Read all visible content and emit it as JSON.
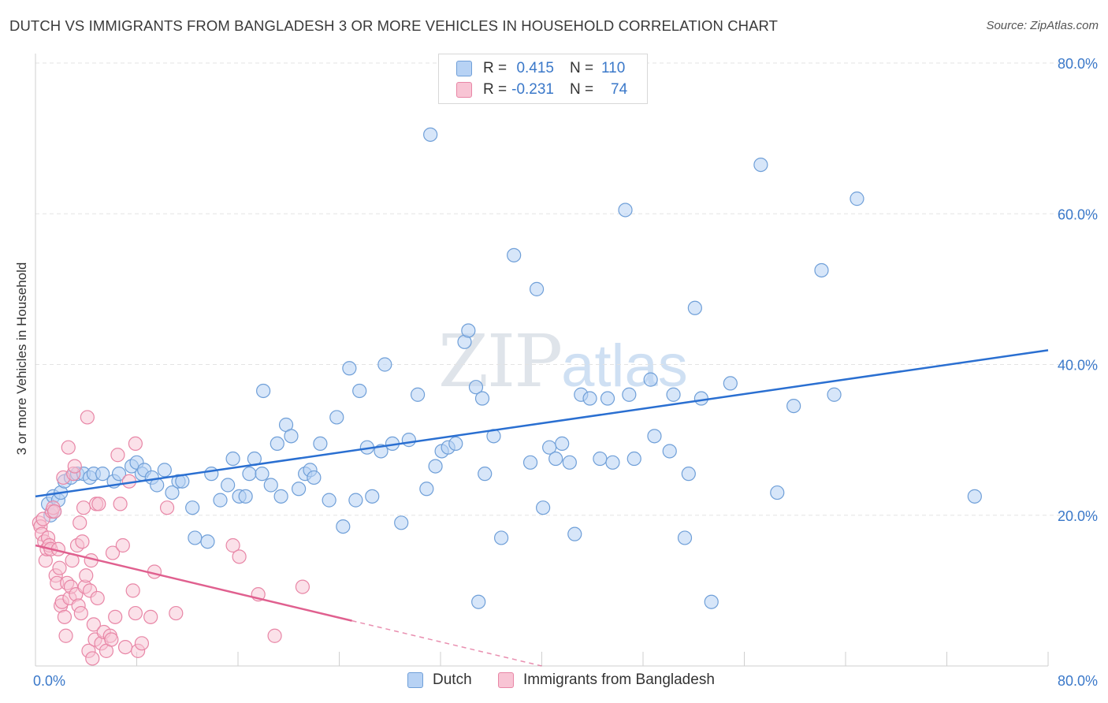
{
  "title": "DUTCH VS IMMIGRANTS FROM BANGLADESH 3 OR MORE VEHICLES IN HOUSEHOLD CORRELATION CHART",
  "source": "Source: ZipAtlas.com",
  "watermark": {
    "zip": "ZIP",
    "atlas": "atlas"
  },
  "legend_top": [
    {
      "r_label": "R =",
      "r_value": "0.415",
      "n_label": "N =",
      "n_value": "110"
    },
    {
      "r_label": "R =",
      "r_value": "-0.231",
      "n_label": "N =",
      "n_value": "74"
    }
  ],
  "colors": {
    "blue_fill": "#b7d2f4",
    "blue_stroke": "#6f9fd8",
    "blue_line": "#2a6fd1",
    "pink_fill": "#f8c4d4",
    "pink_stroke": "#e886a6",
    "pink_line": "#e0608f",
    "grid": "#e3e3e3",
    "axis_text": "#3a78c9"
  },
  "chart_data": {
    "type": "scatter",
    "xlabel": "",
    "ylabel": "3 or more Vehicles in Household",
    "xlim": [
      0,
      80
    ],
    "ylim": [
      0,
      80
    ],
    "x_tick_labels": [
      "0.0%",
      "80.0%"
    ],
    "y_ticks": [
      20,
      40,
      60,
      80
    ],
    "y_tick_labels": [
      "20.0%",
      "40.0%",
      "60.0%",
      "80.0%"
    ],
    "legend_position": "top-center",
    "series": [
      {
        "name": "Dutch",
        "trend": {
          "x": [
            0,
            80
          ],
          "y": [
            22.5,
            41.9
          ]
        },
        "points": [
          [
            1.0,
            21.5
          ],
          [
            1.2,
            20.0
          ],
          [
            1.4,
            22.5
          ],
          [
            1.5,
            20.5
          ],
          [
            1.8,
            22.0
          ],
          [
            2.0,
            23.0
          ],
          [
            2.3,
            24.5
          ],
          [
            2.8,
            25.0
          ],
          [
            3.3,
            25.5
          ],
          [
            3.8,
            25.5
          ],
          [
            4.3,
            25.0
          ],
          [
            4.6,
            25.5
          ],
          [
            5.3,
            25.5
          ],
          [
            6.2,
            24.5
          ],
          [
            6.6,
            25.5
          ],
          [
            7.6,
            26.5
          ],
          [
            8.0,
            27.0
          ],
          [
            8.4,
            25.5
          ],
          [
            8.6,
            26.0
          ],
          [
            9.2,
            25.0
          ],
          [
            9.6,
            24.0
          ],
          [
            10.2,
            26.0
          ],
          [
            10.8,
            23.0
          ],
          [
            11.3,
            24.5
          ],
          [
            11.6,
            24.5
          ],
          [
            12.4,
            21.0
          ],
          [
            12.6,
            17.0
          ],
          [
            13.6,
            16.5
          ],
          [
            13.9,
            25.5
          ],
          [
            14.6,
            22.0
          ],
          [
            15.2,
            24.0
          ],
          [
            15.6,
            27.5
          ],
          [
            16.1,
            22.5
          ],
          [
            16.6,
            22.5
          ],
          [
            16.9,
            25.5
          ],
          [
            17.3,
            27.5
          ],
          [
            17.9,
            25.5
          ],
          [
            18.0,
            36.5
          ],
          [
            18.6,
            24.0
          ],
          [
            19.1,
            29.5
          ],
          [
            19.4,
            22.5
          ],
          [
            19.8,
            32.0
          ],
          [
            20.2,
            30.5
          ],
          [
            20.8,
            23.5
          ],
          [
            21.3,
            25.5
          ],
          [
            21.7,
            26.0
          ],
          [
            22.0,
            25.0
          ],
          [
            22.5,
            29.5
          ],
          [
            23.2,
            22.0
          ],
          [
            23.8,
            33.0
          ],
          [
            24.3,
            18.5
          ],
          [
            24.8,
            39.5
          ],
          [
            25.3,
            22.0
          ],
          [
            25.6,
            36.5
          ],
          [
            26.2,
            29.0
          ],
          [
            26.6,
            22.5
          ],
          [
            27.3,
            28.5
          ],
          [
            27.6,
            40.0
          ],
          [
            28.2,
            29.5
          ],
          [
            28.9,
            19.0
          ],
          [
            29.5,
            30.0
          ],
          [
            30.2,
            36.0
          ],
          [
            30.9,
            23.5
          ],
          [
            31.2,
            70.5
          ],
          [
            31.6,
            26.5
          ],
          [
            32.1,
            28.5
          ],
          [
            32.6,
            29.0
          ],
          [
            33.2,
            29.5
          ],
          [
            33.9,
            43.0
          ],
          [
            34.2,
            44.5
          ],
          [
            34.8,
            37.0
          ],
          [
            35.0,
            8.5
          ],
          [
            35.3,
            35.5
          ],
          [
            35.5,
            25.5
          ],
          [
            36.2,
            30.5
          ],
          [
            36.8,
            17.0
          ],
          [
            37.8,
            54.5
          ],
          [
            39.1,
            27.0
          ],
          [
            39.6,
            50.0
          ],
          [
            40.1,
            21.0
          ],
          [
            40.6,
            29.0
          ],
          [
            41.1,
            27.5
          ],
          [
            41.6,
            29.5
          ],
          [
            42.2,
            27.0
          ],
          [
            42.6,
            17.5
          ],
          [
            43.1,
            36.0
          ],
          [
            43.8,
            35.5
          ],
          [
            44.6,
            27.5
          ],
          [
            45.2,
            35.5
          ],
          [
            45.6,
            27.0
          ],
          [
            46.6,
            60.5
          ],
          [
            46.9,
            36.0
          ],
          [
            47.3,
            27.5
          ],
          [
            48.6,
            38.0
          ],
          [
            48.9,
            30.5
          ],
          [
            50.1,
            28.5
          ],
          [
            50.4,
            36.0
          ],
          [
            51.3,
            17.0
          ],
          [
            51.6,
            25.5
          ],
          [
            52.1,
            47.5
          ],
          [
            52.6,
            35.5
          ],
          [
            53.4,
            8.5
          ],
          [
            54.9,
            37.5
          ],
          [
            57.3,
            66.5
          ],
          [
            58.6,
            23.0
          ],
          [
            59.9,
            34.5
          ],
          [
            62.1,
            52.5
          ],
          [
            63.1,
            36.0
          ],
          [
            64.9,
            62.0
          ],
          [
            74.2,
            22.5
          ]
        ]
      },
      {
        "name": "Immigrants from Bangladesh",
        "trend": {
          "x": [
            0,
            25
          ],
          "y": [
            16.0,
            6.0
          ]
        },
        "trend_dashed": {
          "x": [
            25,
            40
          ],
          "y": [
            6.0,
            0.0
          ]
        },
        "points": [
          [
            0.3,
            19.0
          ],
          [
            0.4,
            18.5
          ],
          [
            0.5,
            17.5
          ],
          [
            0.6,
            19.5
          ],
          [
            0.7,
            16.5
          ],
          [
            0.8,
            14.0
          ],
          [
            0.9,
            15.5
          ],
          [
            1.0,
            17.0
          ],
          [
            1.1,
            16.0
          ],
          [
            1.2,
            15.5
          ],
          [
            1.3,
            20.5
          ],
          [
            1.4,
            21.0
          ],
          [
            1.5,
            20.5
          ],
          [
            1.6,
            12.0
          ],
          [
            1.7,
            11.0
          ],
          [
            1.8,
            15.5
          ],
          [
            1.9,
            13.0
          ],
          [
            2.0,
            8.0
          ],
          [
            2.1,
            8.5
          ],
          [
            2.2,
            25.0
          ],
          [
            2.3,
            6.5
          ],
          [
            2.4,
            4.0
          ],
          [
            2.5,
            11.0
          ],
          [
            2.6,
            29.0
          ],
          [
            2.7,
            9.0
          ],
          [
            2.8,
            10.5
          ],
          [
            2.9,
            14.0
          ],
          [
            3.0,
            25.5
          ],
          [
            3.1,
            26.5
          ],
          [
            3.2,
            9.5
          ],
          [
            3.3,
            16.0
          ],
          [
            3.4,
            8.0
          ],
          [
            3.5,
            19.0
          ],
          [
            3.6,
            7.0
          ],
          [
            3.7,
            16.5
          ],
          [
            3.8,
            21.0
          ],
          [
            3.9,
            10.5
          ],
          [
            4.0,
            12.0
          ],
          [
            4.1,
            33.0
          ],
          [
            4.2,
            2.0
          ],
          [
            4.3,
            10.0
          ],
          [
            4.4,
            14.0
          ],
          [
            4.5,
            1.0
          ],
          [
            4.6,
            5.5
          ],
          [
            4.7,
            3.5
          ],
          [
            4.8,
            21.5
          ],
          [
            4.9,
            9.0
          ],
          [
            5.0,
            21.5
          ],
          [
            5.2,
            3.0
          ],
          [
            5.4,
            4.5
          ],
          [
            5.6,
            2.0
          ],
          [
            5.9,
            4.0
          ],
          [
            6.0,
            3.5
          ],
          [
            6.1,
            15.0
          ],
          [
            6.3,
            6.5
          ],
          [
            6.5,
            28.0
          ],
          [
            6.7,
            21.5
          ],
          [
            6.9,
            16.0
          ],
          [
            7.1,
            2.5
          ],
          [
            7.4,
            24.5
          ],
          [
            7.7,
            10.0
          ],
          [
            7.9,
            29.5
          ],
          [
            8.1,
            2.0
          ],
          [
            8.4,
            3.0
          ],
          [
            9.1,
            6.5
          ],
          [
            9.4,
            12.5
          ],
          [
            10.4,
            21.0
          ],
          [
            11.1,
            7.0
          ],
          [
            15.6,
            16.0
          ],
          [
            16.1,
            14.5
          ],
          [
            17.6,
            9.5
          ],
          [
            18.9,
            4.0
          ],
          [
            21.1,
            10.5
          ],
          [
            7.9,
            7.0
          ]
        ]
      }
    ]
  },
  "legend_bottom": [
    "Dutch",
    "Immigrants from Bangladesh"
  ]
}
